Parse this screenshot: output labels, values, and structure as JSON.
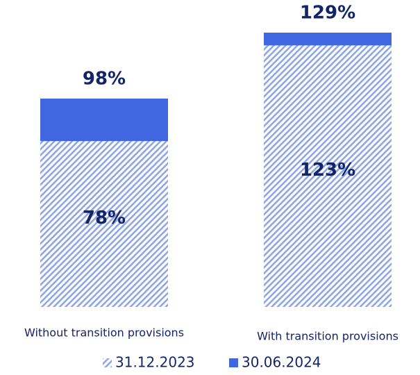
{
  "chart_data": {
    "type": "bar",
    "categories": [
      "Without transition provisions",
      "With transition provisions"
    ],
    "series": [
      {
        "name": "31.12.2023",
        "color": "#8fa6e6",
        "values": [
          78,
          123
        ],
        "value_labels": [
          "78%",
          "123%"
        ]
      },
      {
        "name": "30.06.2024",
        "color": "#4066e0",
        "values": [
          98,
          129
        ],
        "value_labels": [
          "98%",
          "129%"
        ]
      }
    ]
  }
}
